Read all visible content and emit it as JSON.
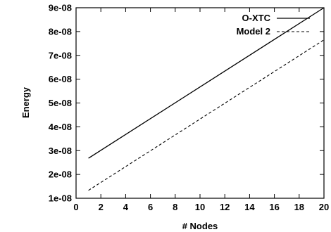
{
  "chart_data": {
    "type": "line",
    "xlabel": "# Nodes",
    "ylabel": "Energy",
    "xlim": [
      0,
      20
    ],
    "ylim": [
      1e-08,
      9e-08
    ],
    "x_ticks": [
      0,
      2,
      4,
      6,
      8,
      10,
      12,
      14,
      16,
      18,
      20
    ],
    "y_ticks": [
      1e-08,
      2e-08,
      3e-08,
      4e-08,
      5e-08,
      6e-08,
      7e-08,
      8e-08,
      9e-08
    ],
    "x_tick_labels": [
      "0",
      "2",
      "4",
      "6",
      "8",
      "10",
      "12",
      "14",
      "16",
      "18",
      "20"
    ],
    "y_tick_labels": [
      "1e-08",
      "2e-08",
      "3e-08",
      "4e-08",
      "5e-08",
      "6e-08",
      "7e-08",
      "8e-08",
      "9e-08"
    ],
    "grid": false,
    "legend_position": "top-right",
    "series": [
      {
        "name": "O-XTC",
        "style": "solid",
        "color": "#000000",
        "x": [
          1,
          20
        ],
        "y": [
          2.68e-08,
          9e-08
        ]
      },
      {
        "name": "Model 2",
        "style": "dashed",
        "color": "#000000",
        "x": [
          1,
          20
        ],
        "y": [
          1.33e-08,
          7.65e-08
        ]
      }
    ]
  }
}
